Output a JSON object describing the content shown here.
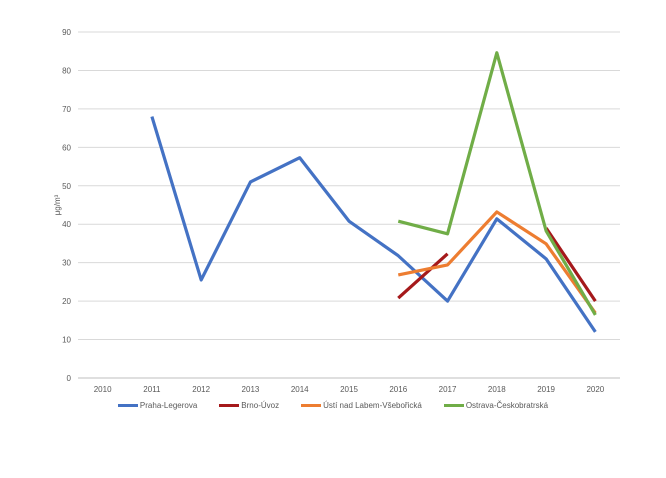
{
  "chart_data": {
    "type": "line",
    "title": "",
    "xlabel": "",
    "ylabel": "μg/m³",
    "ylim": [
      0,
      90
    ],
    "yticks": [
      0,
      10,
      20,
      30,
      40,
      50,
      60,
      70,
      80,
      90
    ],
    "grid": true,
    "legend_position": "bottom",
    "x": [
      "2010",
      "2011",
      "2012",
      "2013",
      "2014",
      "2015",
      "2016",
      "2017",
      "2018",
      "2019",
      "2020"
    ],
    "series": [
      {
        "name": "Praha-Legerova",
        "color": "#4472C4",
        "values": [
          null,
          68,
          25.5,
          51,
          57.3,
          40.8,
          31.8,
          20,
          41.4,
          31,
          12
        ]
      },
      {
        "name": "Brno-Úvoz",
        "color": "#A5191B",
        "values": [
          null,
          null,
          null,
          null,
          null,
          null,
          20.8,
          32.3,
          null,
          39,
          20
        ]
      },
      {
        "name": "Ústí nad Labem-Všebořická",
        "color": "#ED7D31",
        "values": [
          null,
          null,
          null,
          null,
          null,
          null,
          26.8,
          29.4,
          43.2,
          34.9,
          16.9
        ]
      },
      {
        "name": "Ostrava-Českobratrská",
        "color": "#70AD47",
        "values": [
          null,
          null,
          null,
          null,
          null,
          null,
          40.8,
          37.5,
          84.6,
          38.3,
          16.4
        ]
      }
    ]
  }
}
